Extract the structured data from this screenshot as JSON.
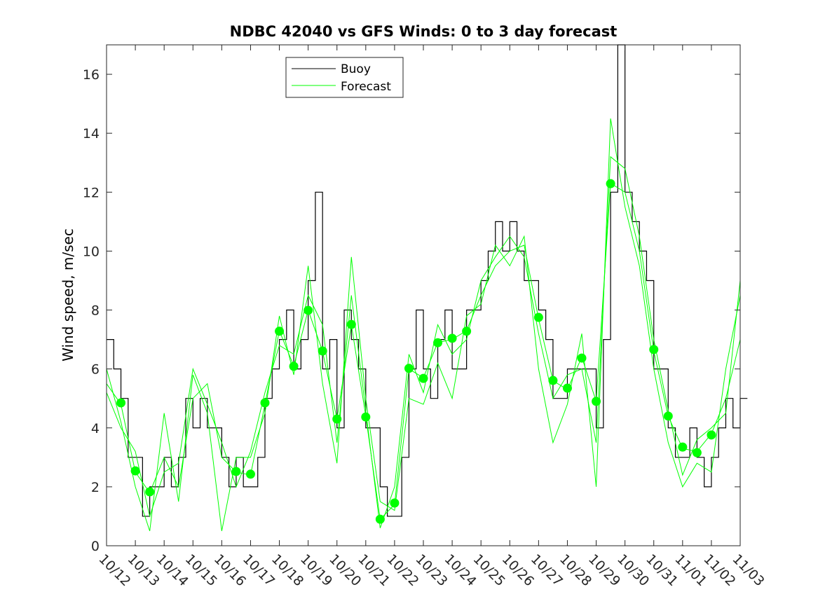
{
  "chart_data": {
    "type": "line",
    "title": "NDBC 42040 vs GFS Winds: 0 to 3 day forecast",
    "xlabel": "",
    "ylabel": "Wind speed, m/sec",
    "ylim": [
      0,
      17
    ],
    "xlim_days": [
      0,
      22
    ],
    "yticks": [
      0,
      2,
      4,
      6,
      8,
      10,
      12,
      14,
      16
    ],
    "xtick_labels": [
      "10/12",
      "10/13",
      "10/14",
      "10/15",
      "10/16",
      "10/17",
      "10/18",
      "10/19",
      "10/20",
      "10/21",
      "10/22",
      "10/23",
      "10/24",
      "10/25",
      "10/26",
      "10/27",
      "10/28",
      "10/29",
      "10/30",
      "10/31",
      "11/01",
      "11/02",
      "11/03"
    ],
    "legend": {
      "placement": "top-center",
      "entries": [
        "Buoy",
        "Forecast"
      ]
    },
    "colors": {
      "buoy": "#000000",
      "forecast": "#00ff00",
      "marker": "#00ff00"
    },
    "buoy": {
      "name": "Buoy",
      "step_days": 0.25,
      "values": [
        7,
        6,
        5,
        3,
        3,
        1,
        2,
        2,
        3,
        2,
        3,
        5,
        4,
        5,
        4,
        4,
        3,
        2,
        3,
        2,
        2,
        3,
        5,
        6,
        7,
        8,
        6,
        7,
        9,
        12,
        6,
        7,
        4,
        8,
        7,
        6,
        4,
        4,
        2,
        1,
        1,
        3,
        6,
        8,
        6,
        5,
        7,
        8,
        6,
        6,
        8,
        8,
        9,
        10,
        11,
        10,
        11,
        10,
        9,
        9,
        8,
        7,
        5,
        5,
        6,
        6,
        6,
        6,
        4,
        7,
        12,
        17,
        12,
        11,
        10,
        9,
        6,
        6,
        4,
        3,
        3,
        4,
        3,
        2,
        3,
        4,
        5,
        4,
        5
      ]
    },
    "forecast": {
      "name": "Forecast",
      "step_days": 0.5,
      "series": [
        [
          5.5,
          4.8,
          2.5,
          1.8,
          3,
          2,
          5,
          5.5,
          3,
          2.5,
          2.4,
          4.8,
          7.3,
          6.1,
          8,
          6.6,
          4.3,
          7.5,
          4.4,
          0.9,
          1.4,
          6,
          5.7,
          6.9,
          7,
          7.3,
          8.5,
          9.5,
          10,
          10.2,
          7.7,
          5.6,
          5.3,
          6.4,
          4.9,
          12.3,
          12,
          10,
          6.6,
          4.4,
          3.3,
          3.2,
          3.8,
          5,
          7
        ],
        [
          6,
          4.2,
          2,
          0.5,
          4.5,
          1.5,
          5.8,
          4.5,
          0.5,
          3,
          3,
          4.5,
          7.8,
          5.8,
          9.5,
          5.5,
          2.8,
          9.8,
          5,
          1.5,
          1.2,
          5,
          4.8,
          6.2,
          5,
          7.8,
          8.2,
          10.2,
          9.5,
          10.5,
          6,
          3.5,
          4.8,
          7.2,
          2,
          14.5,
          11.5,
          9.5,
          6,
          3.5,
          2,
          2.8,
          2.5,
          6,
          8.5
        ],
        [
          5.2,
          4,
          3.2,
          1,
          2.5,
          2.8,
          6,
          4.8,
          3.5,
          2,
          3.2,
          5.2,
          6.8,
          6.5,
          8.5,
          7.5,
          3.5,
          8.5,
          4.6,
          0.6,
          2,
          6.5,
          5.2,
          7.5,
          6.5,
          7,
          9,
          9.8,
          10.5,
          9.8,
          7.2,
          5,
          5.8,
          6,
          3.5,
          13.2,
          12.8,
          10.5,
          7,
          4.6,
          2.4,
          3.6,
          4,
          4.5,
          9
        ]
      ]
    },
    "markers": {
      "x_days": [
        0.5,
        1,
        1.5,
        4.5,
        5,
        5.5,
        6,
        6.5,
        7,
        7.5,
        8,
        8.5,
        9,
        9.5,
        10,
        10.5,
        11,
        11.5,
        12,
        12.5,
        15,
        15.5,
        16,
        16.5,
        17,
        17.5,
        19,
        19.5,
        20,
        20.5,
        21
      ],
      "values": [
        4.85,
        2.54,
        1.83,
        2.52,
        2.43,
        4.85,
        7.28,
        6.09,
        7.99,
        6.61,
        4.3,
        7.51,
        4.37,
        0.9,
        1.45,
        6.02,
        5.68,
        6.89,
        7.04,
        7.28,
        7.75,
        5.61,
        5.35,
        6.37,
        4.9,
        12.29,
        6.66,
        4.4,
        3.35,
        3.16,
        3.76
      ]
    }
  }
}
